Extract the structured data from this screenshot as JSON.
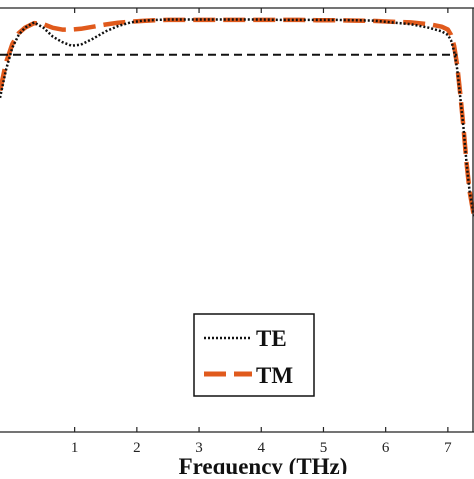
{
  "chart_data": {
    "type": "line",
    "title": "",
    "xlabel": "Frequency (THz)",
    "ylabel": "",
    "xlim": [
      -0.2,
      7.42
    ],
    "ylim": [
      -0.15,
      1.03
    ],
    "x_ticks": [
      "1",
      "2",
      "3",
      "4",
      "5",
      "6",
      "7"
    ],
    "x_tick_values": [
      1,
      2,
      3,
      4,
      5,
      6,
      7
    ],
    "grid": false,
    "legend_position": "bottom-center",
    "legend": [
      "TE",
      "TM"
    ],
    "series": [
      {
        "name": "TE",
        "style": "dotted",
        "color": "#111111",
        "x": [
          -0.2,
          -0.1,
          0.0,
          0.1,
          0.2,
          0.35,
          0.5,
          0.65,
          0.8,
          0.95,
          1.1,
          1.3,
          1.5,
          1.7,
          1.9,
          2.1,
          2.3,
          2.5,
          2.8,
          3.1,
          3.4,
          3.7,
          4.0,
          4.3,
          4.6,
          4.9,
          5.2,
          5.5,
          5.8,
          6.1,
          6.4,
          6.7,
          6.9,
          7.0,
          7.05,
          7.1,
          7.15,
          7.2,
          7.25,
          7.3,
          7.35,
          7.42
        ],
        "y": [
          0.78,
          0.86,
          0.92,
          0.955,
          0.975,
          0.99,
          0.975,
          0.95,
          0.935,
          0.925,
          0.928,
          0.945,
          0.965,
          0.98,
          0.99,
          0.995,
          0.997,
          0.998,
          0.998,
          0.998,
          0.998,
          0.998,
          0.998,
          0.997,
          0.997,
          0.997,
          0.997,
          0.996,
          0.995,
          0.99,
          0.985,
          0.975,
          0.965,
          0.955,
          0.94,
          0.91,
          0.86,
          0.78,
          0.7,
          0.6,
          0.52,
          0.45
        ]
      },
      {
        "name": "TM",
        "style": "dashed",
        "color": "#e05a1c",
        "x": [
          -0.2,
          -0.1,
          0.0,
          0.1,
          0.2,
          0.35,
          0.5,
          0.65,
          0.8,
          0.95,
          1.1,
          1.3,
          1.5,
          1.7,
          1.9,
          2.1,
          2.3,
          2.5,
          2.8,
          3.1,
          3.4,
          3.7,
          4.0,
          4.3,
          4.6,
          4.9,
          5.2,
          5.5,
          5.8,
          6.1,
          6.4,
          6.7,
          6.9,
          7.0,
          7.05,
          7.1,
          7.15,
          7.2,
          7.25,
          7.3,
          7.35,
          7.42
        ],
        "y": [
          0.8,
          0.88,
          0.93,
          0.96,
          0.975,
          0.988,
          0.985,
          0.975,
          0.97,
          0.97,
          0.972,
          0.978,
          0.984,
          0.989,
          0.992,
          0.994,
          0.996,
          0.997,
          0.997,
          0.997,
          0.997,
          0.997,
          0.997,
          0.997,
          0.997,
          0.996,
          0.996,
          0.995,
          0.994,
          0.992,
          0.99,
          0.985,
          0.978,
          0.97,
          0.955,
          0.925,
          0.87,
          0.79,
          0.7,
          0.6,
          0.52,
          0.45
        ]
      },
      {
        "style": "dashed",
        "color": "#111111",
        "x": [
          -0.2,
          7.15
        ],
        "y": [
          0.9,
          0.9
        ]
      }
    ]
  },
  "legend": {
    "te_label": "TE",
    "tm_label": "TM"
  },
  "axis": {
    "xlabel": "Frequency (THz)"
  }
}
